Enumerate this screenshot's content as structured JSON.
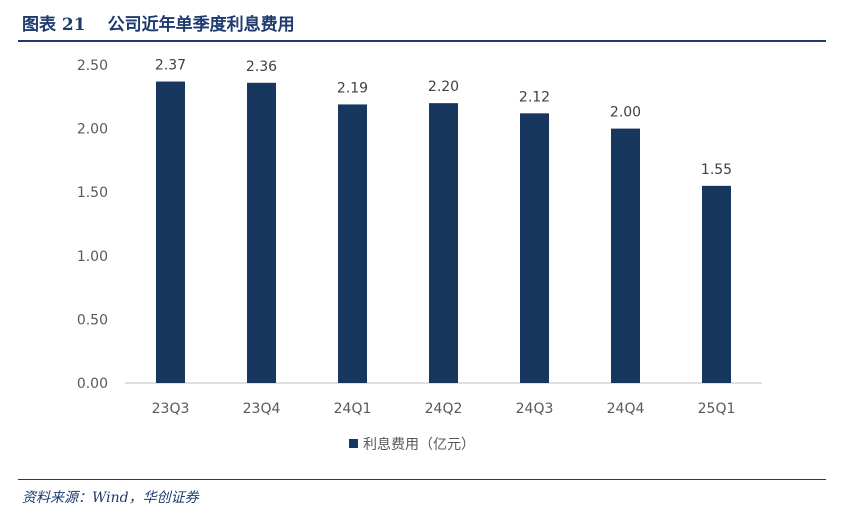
{
  "figure": {
    "number": "图表 21",
    "title": "公司近年单季度利息费用"
  },
  "source": "资料来源：Wind，华创证券",
  "colors": {
    "bar": "#17375e",
    "axis": "#bfbfbf",
    "title": "#1e3a6e"
  },
  "chart_data": {
    "type": "bar",
    "categories": [
      "23Q3",
      "23Q4",
      "24Q1",
      "24Q2",
      "24Q3",
      "24Q4",
      "25Q1"
    ],
    "series": [
      {
        "name": "利息费用（亿元）",
        "values": [
          2.37,
          2.36,
          2.19,
          2.2,
          2.12,
          2.0,
          1.55
        ]
      }
    ],
    "value_labels": [
      "2.37",
      "2.36",
      "2.19",
      "2.20",
      "2.12",
      "2.00",
      "1.55"
    ],
    "yticks": [
      "0.00",
      "0.50",
      "1.00",
      "1.50",
      "2.00",
      "2.50"
    ],
    "ylim": [
      0,
      2.5
    ],
    "grid": false,
    "legend_position": "bottom"
  }
}
